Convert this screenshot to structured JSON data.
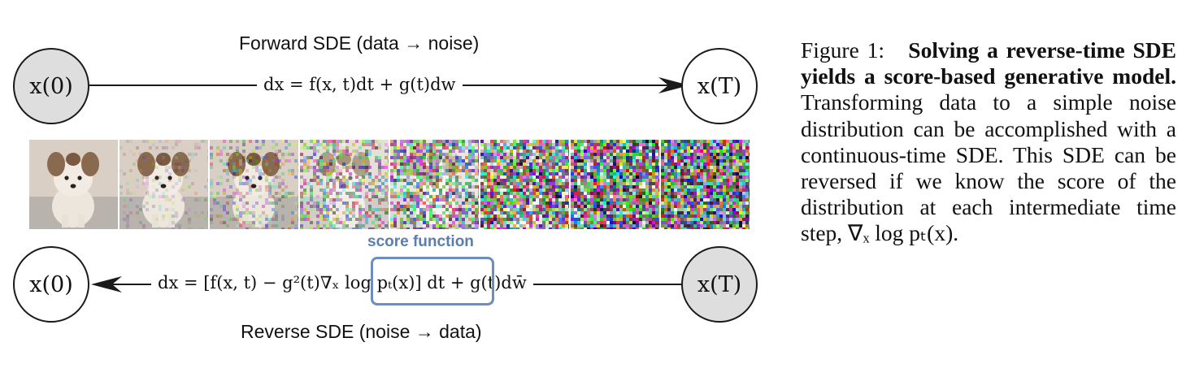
{
  "forward": {
    "label": "Forward SDE (data → noise)",
    "start_node": "x(0)",
    "end_node": "x(T)",
    "equation": "dx = f(x, t)dt + g(t)dw"
  },
  "reverse": {
    "label": "Reverse SDE (noise → data)",
    "start_node": "x(T)",
    "end_node": "x(0)",
    "equation": "dx = [f(x, t) − g²(t)∇ₓ log pₜ(x)] dt + g(t)dw̄",
    "score_label": "score function"
  },
  "image_strip": {
    "frames": [
      {
        "name": "frame-1",
        "noise_level": 0.0
      },
      {
        "name": "frame-2",
        "noise_level": 0.18
      },
      {
        "name": "frame-3",
        "noise_level": 0.36
      },
      {
        "name": "frame-4",
        "noise_level": 0.54
      },
      {
        "name": "frame-5",
        "noise_level": 0.72
      },
      {
        "name": "frame-6",
        "noise_level": 0.88
      },
      {
        "name": "frame-7",
        "noise_level": 0.96
      },
      {
        "name": "frame-8",
        "noise_level": 1.0
      }
    ]
  },
  "caption": {
    "prefix": "Figure 1:",
    "lead": "Solving a reverse-time SDE yields a score-based generative model.",
    "body": "Transforming data to a simple noise distribution can be accomplished with a continuous-time SDE. This SDE can be reversed if we know the score of the distribution at each intermediate time step, ∇ₓ log pₜ(x)."
  },
  "colors": {
    "node_filled": "#dedede",
    "score_box": "#6c8ebf",
    "score_text": "#5b7db0"
  }
}
